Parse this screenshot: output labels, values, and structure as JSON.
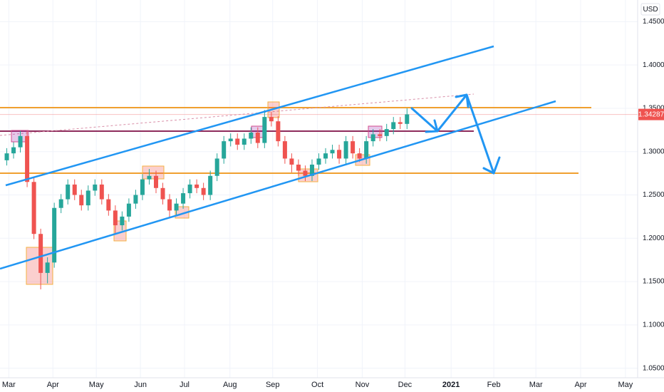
{
  "chart_data": {
    "type": "candlestick",
    "currency": "USD",
    "open": [
      1.29,
      1.298,
      1.305,
      1.318,
      1.265,
      1.205,
      1.16,
      1.172,
      1.235,
      1.245,
      1.262,
      1.25,
      1.238,
      1.255,
      1.262,
      1.245,
      1.232,
      1.215,
      1.225,
      1.24,
      1.25,
      1.268,
      1.272,
      1.258,
      1.245,
      1.232,
      1.24,
      1.252,
      1.262,
      1.258,
      1.25,
      1.272,
      1.292,
      1.312,
      1.315,
      1.308,
      1.315,
      1.322,
      1.31,
      1.34,
      1.335,
      1.312,
      1.292,
      1.285,
      1.278,
      1.272,
      1.285,
      1.292,
      1.298,
      1.302,
      1.292,
      1.312,
      1.298,
      1.292,
      1.312,
      1.32,
      1.318,
      1.326,
      1.334,
      1.332
    ],
    "high": [
      1.304,
      1.311,
      1.324,
      1.324,
      1.271,
      1.211,
      1.178,
      1.241,
      1.251,
      1.268,
      1.268,
      1.256,
      1.261,
      1.268,
      1.268,
      1.251,
      1.238,
      1.231,
      1.246,
      1.256,
      1.274,
      1.28,
      1.278,
      1.264,
      1.251,
      1.246,
      1.258,
      1.268,
      1.268,
      1.264,
      1.278,
      1.298,
      1.318,
      1.321,
      1.321,
      1.321,
      1.328,
      1.328,
      1.348,
      1.346,
      1.341,
      1.318,
      1.298,
      1.291,
      1.284,
      1.291,
      1.298,
      1.304,
      1.308,
      1.308,
      1.318,
      1.318,
      1.304,
      1.318,
      1.326,
      1.326,
      1.332,
      1.34,
      1.34,
      1.35
    ],
    "low": [
      1.284,
      1.292,
      1.299,
      1.259,
      1.199,
      1.141,
      1.148,
      1.166,
      1.229,
      1.239,
      1.244,
      1.232,
      1.232,
      1.249,
      1.239,
      1.226,
      1.205,
      1.209,
      1.219,
      1.234,
      1.244,
      1.262,
      1.252,
      1.239,
      1.224,
      1.226,
      1.234,
      1.246,
      1.252,
      1.244,
      1.244,
      1.266,
      1.286,
      1.306,
      1.302,
      1.302,
      1.309,
      1.304,
      1.304,
      1.329,
      1.306,
      1.286,
      1.276,
      1.272,
      1.266,
      1.266,
      1.279,
      1.286,
      1.292,
      1.286,
      1.286,
      1.292,
      1.288,
      1.286,
      1.306,
      1.312,
      1.312,
      1.32,
      1.326,
      1.326
    ],
    "close": [
      1.298,
      1.305,
      1.318,
      1.265,
      1.205,
      1.16,
      1.172,
      1.235,
      1.245,
      1.262,
      1.25,
      1.238,
      1.255,
      1.262,
      1.245,
      1.232,
      1.215,
      1.225,
      1.24,
      1.25,
      1.268,
      1.272,
      1.258,
      1.245,
      1.232,
      1.24,
      1.252,
      1.262,
      1.258,
      1.25,
      1.272,
      1.292,
      1.312,
      1.315,
      1.308,
      1.315,
      1.322,
      1.31,
      1.34,
      1.335,
      1.312,
      1.292,
      1.285,
      1.278,
      1.272,
      1.285,
      1.292,
      1.298,
      1.302,
      1.292,
      1.312,
      1.298,
      1.292,
      1.312,
      1.32,
      1.318,
      1.326,
      1.334,
      1.332,
      1.343
    ],
    "up_color": "#26a69a",
    "down_color": "#ef5350",
    "xlim": [
      -1,
      93
    ],
    "xticks": [
      {
        "value": 0.3,
        "label": "Mar"
      },
      {
        "value": 6.8,
        "label": "Apr"
      },
      {
        "value": 13.2,
        "label": "May"
      },
      {
        "value": 19.7,
        "label": "Jun"
      },
      {
        "value": 26.2,
        "label": "Jul"
      },
      {
        "value": 32.9,
        "label": "Aug"
      },
      {
        "value": 39.2,
        "label": "Sep"
      },
      {
        "value": 45.8,
        "label": "Oct"
      },
      {
        "value": 52.4,
        "label": "Nov"
      },
      {
        "value": 58.7,
        "label": "Dec"
      },
      {
        "value": 65.5,
        "label": "2021"
      },
      {
        "value": 71.8,
        "label": "Feb"
      },
      {
        "value": 78,
        "label": "Mar"
      },
      {
        "value": 84.6,
        "label": "Apr"
      },
      {
        "value": 91.2,
        "label": "May"
      }
    ],
    "ylim": [
      1.039,
      1.475
    ],
    "yticks": [
      {
        "value": 1.05,
        "label": "1.05000"
      },
      {
        "value": 1.1,
        "label": "1.10000"
      },
      {
        "value": 1.15,
        "label": "1.15000"
      },
      {
        "value": 1.2,
        "label": "1.20000"
      },
      {
        "value": 1.25,
        "label": "1.25000"
      },
      {
        "value": 1.3,
        "label": "1.30000"
      },
      {
        "value": 1.35,
        "label": "1.35000"
      },
      {
        "value": 1.4,
        "label": "1.40000"
      },
      {
        "value": 1.45,
        "label": "1.45000"
      }
    ],
    "last_price": 1.34287,
    "grid": true
  }
}
